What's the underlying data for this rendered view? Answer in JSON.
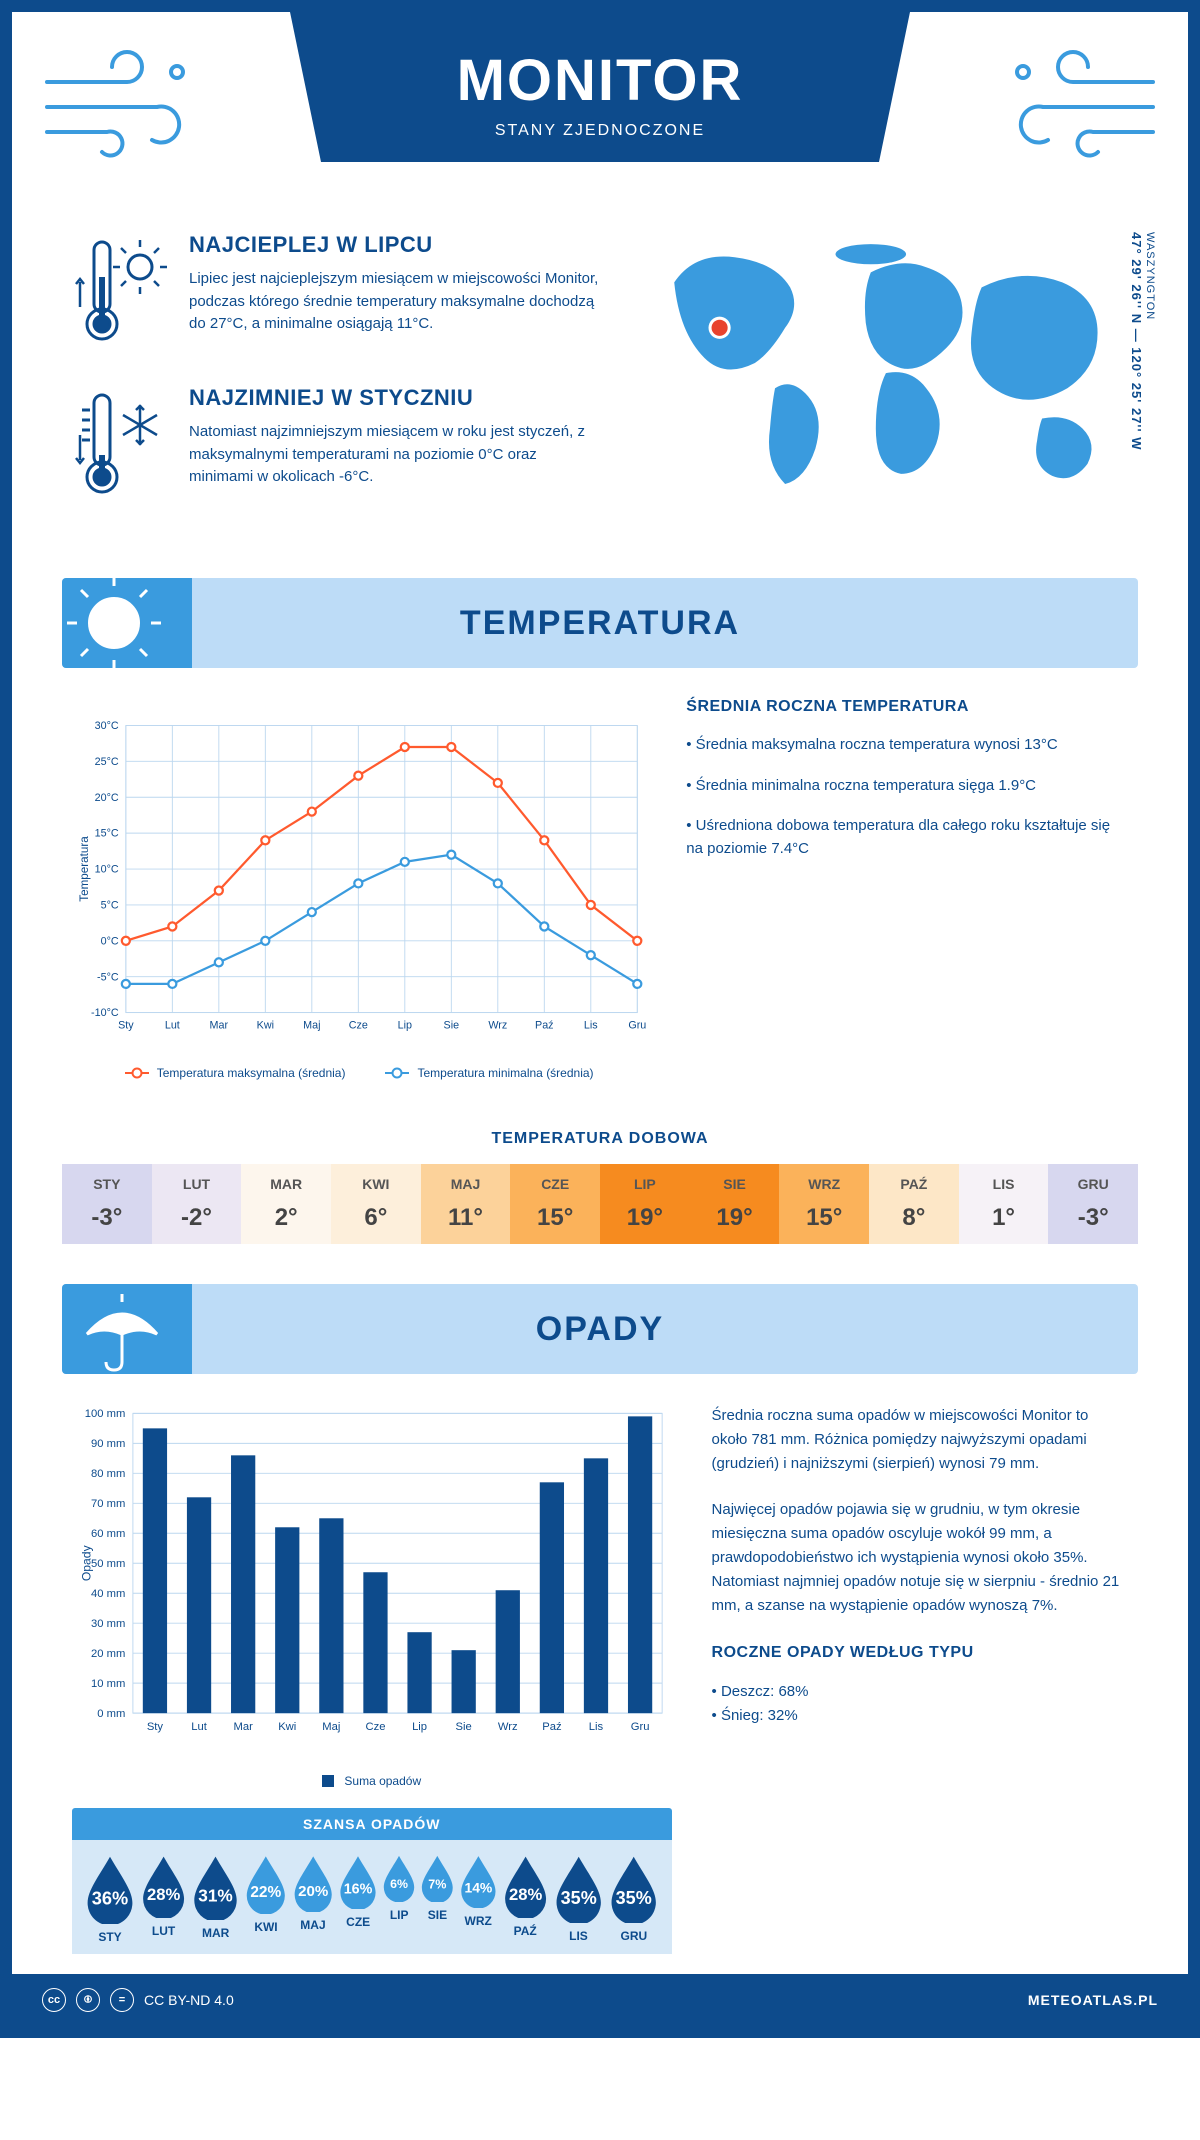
{
  "header": {
    "title": "MONITOR",
    "subtitle": "STANY ZJEDNOCZONE"
  },
  "intro": {
    "warm": {
      "title": "NAJCIEPLEJ W LIPCU",
      "text": "Lipiec jest najcieplejszym miesiącem w miejscowości Monitor, podczas którego średnie temperatury maksymalne dochodzą do 27°C, a minimalne osiągają 11°C."
    },
    "cold": {
      "title": "NAJZIMNIEJ W STYCZNIU",
      "text": "Natomiast najzimniejszym miesiącem w roku jest styczeń, z maksymalnymi temperaturami na poziomie 0°C oraz minimami w okolicach -6°C."
    },
    "coords": "47° 29' 26'' N — 120° 25' 27'' W",
    "coords_sub": "WASZYNGTON"
  },
  "temperature": {
    "banner": "TEMPERATURA",
    "chart": {
      "type": "line",
      "months": [
        "Sty",
        "Lut",
        "Mar",
        "Kwi",
        "Maj",
        "Cze",
        "Lip",
        "Sie",
        "Wrz",
        "Paź",
        "Lis",
        "Gru"
      ],
      "max_series": [
        0,
        2,
        7,
        14,
        18,
        23,
        27,
        27,
        22,
        14,
        5,
        0
      ],
      "min_series": [
        -6,
        -6,
        -3,
        0,
        4,
        8,
        11,
        12,
        8,
        2,
        -2,
        -6
      ],
      "max_color": "#ff5a2e",
      "min_color": "#3a9bde",
      "ylim": [
        -10,
        30
      ],
      "ytick_step": 5,
      "grid_color": "#bcd7ef",
      "ylabel": "Temperatura",
      "legend_max": "Temperatura maksymalna (średnia)",
      "legend_min": "Temperatura minimalna (średnia)"
    },
    "info": {
      "heading": "ŚREDNIA ROCZNA TEMPERATURA",
      "bullets": [
        "Średnia maksymalna roczna temperatura wynosi 13°C",
        "Średnia minimalna roczna temperatura sięga 1.9°C",
        "Uśredniona dobowa temperatura dla całego roku kształtuje się na poziomie 7.4°C"
      ]
    },
    "daily": {
      "heading": "TEMPERATURA DOBOWA",
      "months": [
        "STY",
        "LUT",
        "MAR",
        "KWI",
        "MAJ",
        "CZE",
        "LIP",
        "SIE",
        "WRZ",
        "PAŹ",
        "LIS",
        "GRU"
      ],
      "values": [
        "-3°",
        "-2°",
        "2°",
        "6°",
        "11°",
        "15°",
        "19°",
        "19°",
        "15°",
        "8°",
        "1°",
        "-3°"
      ],
      "colors": [
        "#d7d7ef",
        "#ece7f3",
        "#fdf6ed",
        "#fdefdb",
        "#fcd29a",
        "#fbb25a",
        "#f68b1f",
        "#f68b1f",
        "#fbb25a",
        "#fde7c7",
        "#f6f2f7",
        "#d7d7ef"
      ]
    }
  },
  "precip": {
    "banner": "OPADY",
    "chart": {
      "type": "bar",
      "months": [
        "Sty",
        "Lut",
        "Mar",
        "Kwi",
        "Maj",
        "Cze",
        "Lip",
        "Sie",
        "Wrz",
        "Paź",
        "Lis",
        "Gru"
      ],
      "values": [
        95,
        72,
        86,
        62,
        65,
        47,
        27,
        21,
        41,
        77,
        85,
        99
      ],
      "bar_color": "#0d4b8c",
      "ylim": [
        0,
        100
      ],
      "ytick_step": 10,
      "grid_color": "#bcd7ef",
      "ylabel": "Opady",
      "legend": "Suma opadów"
    },
    "text": {
      "p1": "Średnia roczna suma opadów w miejscowości Monitor to około 781 mm. Różnica pomiędzy najwyższymi opadami (grudzień) i najniższymi (sierpień) wynosi 79 mm.",
      "p2": "Najwięcej opadów pojawia się w grudniu, w tym okresie miesięczna suma opadów oscyluje wokół 99 mm, a prawdopodobieństwo ich wystąpienia wynosi około 35%. Natomiast najmniej opadów notuje się w sierpniu - średnio 21 mm, a szanse na wystąpienie opadów wynoszą 7%.",
      "type_h": "ROCZNE OPADY WEDŁUG TYPU",
      "rain": "Deszcz: 68%",
      "snow": "Śnieg: 32%"
    },
    "chance": {
      "heading": "SZANSA OPADÓW",
      "months": [
        "STY",
        "LUT",
        "MAR",
        "KWI",
        "MAJ",
        "CZE",
        "LIP",
        "SIE",
        "WRZ",
        "PAŹ",
        "LIS",
        "GRU"
      ],
      "values": [
        "36%",
        "28%",
        "31%",
        "22%",
        "20%",
        "16%",
        "6%",
        "7%",
        "14%",
        "28%",
        "35%",
        "35%"
      ],
      "drop_dark": "#0d4b8c",
      "drop_light": "#3a9bde"
    }
  },
  "footer": {
    "license": "CC BY-ND 4.0",
    "site": "METEOATLAS.PL"
  }
}
